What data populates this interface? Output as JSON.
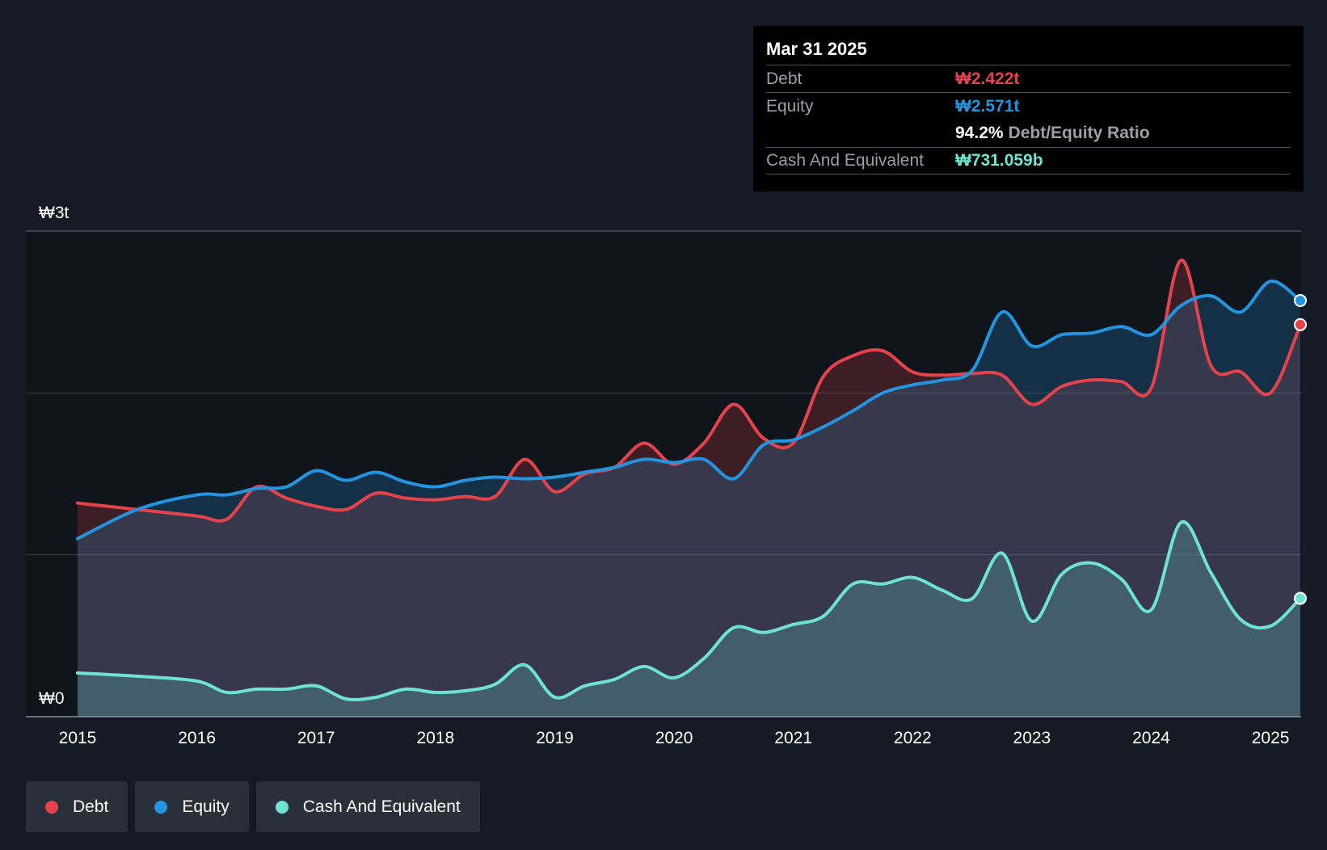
{
  "tooltip": {
    "date": "Mar 31 2025",
    "debt_label": "Debt",
    "debt_value": "₩2.422t",
    "equity_label": "Equity",
    "equity_value": "₩2.571t",
    "ratio_value": "94.2%",
    "ratio_label": "Debt/Equity Ratio",
    "cash_label": "Cash And Equivalent",
    "cash_value": "₩731.059b"
  },
  "legend": [
    {
      "label": "Debt",
      "color": "#e5434b"
    },
    {
      "label": "Equity",
      "color": "#2394e0"
    },
    {
      "label": "Cash And Equivalent",
      "color": "#6ee3d1"
    }
  ],
  "chart_data": {
    "type": "area",
    "ylim": [
      0,
      3
    ],
    "y_unit": "trillion KRW",
    "y_tick_labels": [
      "₩0",
      "₩3t"
    ],
    "y_gridlines": [
      0,
      1,
      2,
      3
    ],
    "x_ticks": [
      2015,
      2016,
      2017,
      2018,
      2019,
      2020,
      2021,
      2022,
      2023,
      2024,
      2025
    ],
    "x_range": [
      2015,
      2025.25
    ],
    "series": [
      {
        "name": "Debt",
        "color": "#e5434b",
        "points": [
          [
            2015.0,
            1.32
          ],
          [
            2015.5,
            1.28
          ],
          [
            2016.0,
            1.24
          ],
          [
            2016.25,
            1.22
          ],
          [
            2016.5,
            1.42
          ],
          [
            2016.75,
            1.35
          ],
          [
            2017.0,
            1.3
          ],
          [
            2017.25,
            1.28
          ],
          [
            2017.5,
            1.38
          ],
          [
            2017.75,
            1.35
          ],
          [
            2018.0,
            1.34
          ],
          [
            2018.25,
            1.36
          ],
          [
            2018.5,
            1.36
          ],
          [
            2018.75,
            1.59
          ],
          [
            2019.0,
            1.39
          ],
          [
            2019.25,
            1.5
          ],
          [
            2019.5,
            1.54
          ],
          [
            2019.75,
            1.69
          ],
          [
            2020.0,
            1.56
          ],
          [
            2020.25,
            1.69
          ],
          [
            2020.5,
            1.93
          ],
          [
            2020.75,
            1.72
          ],
          [
            2021.0,
            1.69
          ],
          [
            2021.25,
            2.1
          ],
          [
            2021.5,
            2.23
          ],
          [
            2021.75,
            2.26
          ],
          [
            2022.0,
            2.13
          ],
          [
            2022.25,
            2.11
          ],
          [
            2022.5,
            2.12
          ],
          [
            2022.75,
            2.11
          ],
          [
            2023.0,
            1.93
          ],
          [
            2023.25,
            2.04
          ],
          [
            2023.5,
            2.08
          ],
          [
            2023.75,
            2.07
          ],
          [
            2024.0,
            2.03
          ],
          [
            2024.25,
            2.82
          ],
          [
            2024.5,
            2.17
          ],
          [
            2024.75,
            2.13
          ],
          [
            2025.0,
            2.0
          ],
          [
            2025.25,
            2.422
          ]
        ]
      },
      {
        "name": "Equity",
        "color": "#2394e0",
        "points": [
          [
            2015.0,
            1.1
          ],
          [
            2015.5,
            1.28
          ],
          [
            2016.0,
            1.37
          ],
          [
            2016.25,
            1.37
          ],
          [
            2016.5,
            1.41
          ],
          [
            2016.75,
            1.42
          ],
          [
            2017.0,
            1.52
          ],
          [
            2017.25,
            1.46
          ],
          [
            2017.5,
            1.51
          ],
          [
            2017.75,
            1.45
          ],
          [
            2018.0,
            1.42
          ],
          [
            2018.25,
            1.46
          ],
          [
            2018.5,
            1.48
          ],
          [
            2018.75,
            1.47
          ],
          [
            2019.0,
            1.48
          ],
          [
            2019.25,
            1.51
          ],
          [
            2019.5,
            1.54
          ],
          [
            2019.75,
            1.59
          ],
          [
            2020.0,
            1.57
          ],
          [
            2020.25,
            1.59
          ],
          [
            2020.5,
            1.47
          ],
          [
            2020.75,
            1.68
          ],
          [
            2021.0,
            1.71
          ],
          [
            2021.25,
            1.79
          ],
          [
            2021.5,
            1.89
          ],
          [
            2021.75,
            2.0
          ],
          [
            2022.0,
            2.05
          ],
          [
            2022.25,
            2.08
          ],
          [
            2022.5,
            2.14
          ],
          [
            2022.75,
            2.5
          ],
          [
            2023.0,
            2.29
          ],
          [
            2023.25,
            2.36
          ],
          [
            2023.5,
            2.37
          ],
          [
            2023.75,
            2.41
          ],
          [
            2024.0,
            2.36
          ],
          [
            2024.25,
            2.54
          ],
          [
            2024.5,
            2.6
          ],
          [
            2024.75,
            2.5
          ],
          [
            2025.0,
            2.69
          ],
          [
            2025.25,
            2.571
          ]
        ]
      },
      {
        "name": "Cash And Equivalent",
        "color": "#6ee3d1",
        "points": [
          [
            2015.0,
            0.27
          ],
          [
            2015.5,
            0.25
          ],
          [
            2016.0,
            0.22
          ],
          [
            2016.25,
            0.15
          ],
          [
            2016.5,
            0.17
          ],
          [
            2016.75,
            0.17
          ],
          [
            2017.0,
            0.19
          ],
          [
            2017.25,
            0.11
          ],
          [
            2017.5,
            0.12
          ],
          [
            2017.75,
            0.17
          ],
          [
            2018.0,
            0.15
          ],
          [
            2018.25,
            0.16
          ],
          [
            2018.5,
            0.2
          ],
          [
            2018.75,
            0.32
          ],
          [
            2019.0,
            0.12
          ],
          [
            2019.25,
            0.19
          ],
          [
            2019.5,
            0.23
          ],
          [
            2019.75,
            0.31
          ],
          [
            2020.0,
            0.24
          ],
          [
            2020.25,
            0.36
          ],
          [
            2020.5,
            0.55
          ],
          [
            2020.75,
            0.52
          ],
          [
            2021.0,
            0.57
          ],
          [
            2021.25,
            0.62
          ],
          [
            2021.5,
            0.82
          ],
          [
            2021.75,
            0.82
          ],
          [
            2022.0,
            0.86
          ],
          [
            2022.25,
            0.78
          ],
          [
            2022.5,
            0.73
          ],
          [
            2022.75,
            1.01
          ],
          [
            2023.0,
            0.59
          ],
          [
            2023.25,
            0.88
          ],
          [
            2023.5,
            0.95
          ],
          [
            2023.75,
            0.85
          ],
          [
            2024.0,
            0.66
          ],
          [
            2024.25,
            1.2
          ],
          [
            2024.5,
            0.89
          ],
          [
            2024.75,
            0.6
          ],
          [
            2025.0,
            0.56
          ],
          [
            2025.25,
            0.731
          ]
        ]
      }
    ]
  }
}
